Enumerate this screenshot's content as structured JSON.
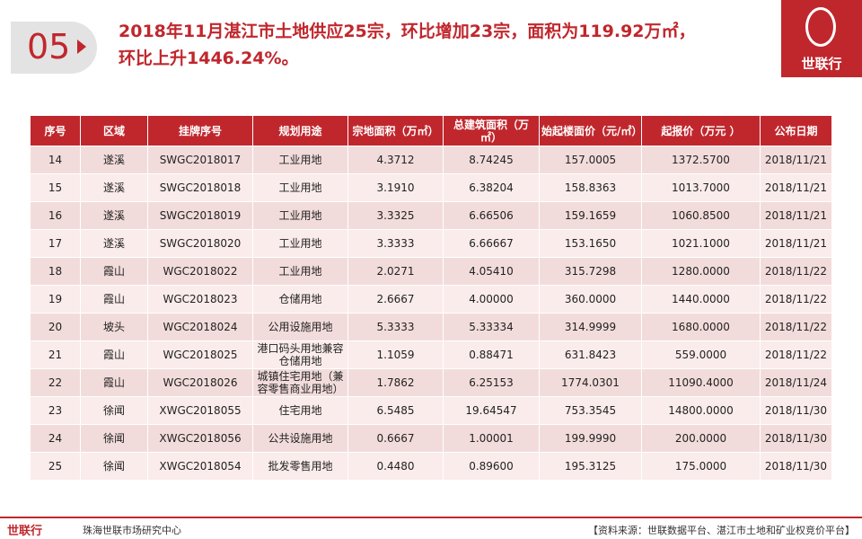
{
  "header": {
    "number": "05",
    "title_lines": [
      "2018年11月湛江市土地供应25宗，环比增加23宗，面积为119.92万㎡，",
      "环比上升1446.24%。"
    ],
    "logo": "世联行"
  },
  "table": {
    "columns": [
      "序号",
      "区域",
      "挂牌序号",
      "规划用途",
      "宗地面积（万㎡）",
      "总建筑面积（万㎡）",
      "始起楼面价（元/㎡）",
      "起报价（万元 ）",
      "公布日期"
    ],
    "rows": [
      [
        "14",
        "遂溪",
        "SWGC2018017",
        "工业用地",
        "4.3712",
        "8.74245",
        "157.0005",
        "1372.5700",
        "2018/11/21"
      ],
      [
        "15",
        "遂溪",
        "SWGC2018018",
        "工业用地",
        "3.1910",
        "6.38204",
        "158.8363",
        "1013.7000",
        "2018/11/21"
      ],
      [
        "16",
        "遂溪",
        "SWGC2018019",
        "工业用地",
        "3.3325",
        "6.66506",
        "159.1659",
        "1060.8500",
        "2018/11/21"
      ],
      [
        "17",
        "遂溪",
        "SWGC2018020",
        "工业用地",
        "3.3333",
        "6.66667",
        "153.1650",
        "1021.1000",
        "2018/11/21"
      ],
      [
        "18",
        "霞山",
        "WGC2018022",
        "工业用地",
        "2.0271",
        "4.05410",
        "315.7298",
        "1280.0000",
        "2018/11/22"
      ],
      [
        "19",
        "霞山",
        "WGC2018023",
        "仓储用地",
        "2.6667",
        "4.00000",
        "360.0000",
        "1440.0000",
        "2018/11/22"
      ],
      [
        "20",
        "坡头",
        "WGC2018024",
        "公用设施用地",
        "5.3333",
        "5.33334",
        "314.9999",
        "1680.0000",
        "2018/11/22"
      ],
      [
        "21",
        "霞山",
        "WGC2018025",
        "港口码头用地兼容仓储用地",
        "1.1059",
        "0.88471",
        "631.8423",
        "559.0000",
        "2018/11/22"
      ],
      [
        "22",
        "霞山",
        "WGC2018026",
        "城镇住宅用地（兼容零售商业用地）",
        "1.7862",
        "6.25153",
        "1774.0301",
        "11090.4000",
        "2018/11/24"
      ],
      [
        "23",
        "徐闻",
        "XWGC2018055",
        "住宅用地",
        "6.5485",
        "19.64547",
        "753.3545",
        "14800.0000",
        "2018/11/30"
      ],
      [
        "24",
        "徐闻",
        "XWGC2018056",
        "公共设施用地",
        "0.6667",
        "1.00001",
        "199.9990",
        "200.0000",
        "2018/11/30"
      ],
      [
        "25",
        "徐闻",
        "XWGC2018054",
        "批发零售用地",
        "0.4480",
        "0.89600",
        "195.3125",
        "175.0000",
        "2018/11/30"
      ]
    ]
  },
  "footer": {
    "logo": "世联行",
    "org": "珠海世联市场研究中心",
    "source": "【资料来源：世联数据平台、湛江市土地和矿业权竞价平台】"
  }
}
